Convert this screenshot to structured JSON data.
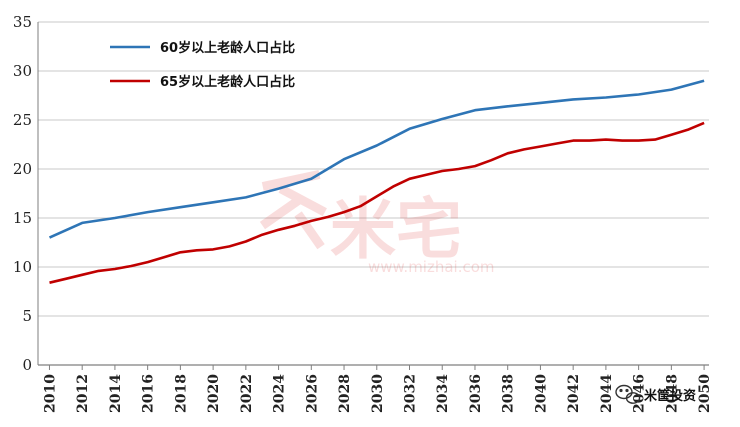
{
  "chart_data": {
    "type": "line",
    "title": "",
    "xlabel": "",
    "ylabel": "",
    "xlim": [
      2009.3,
      2050.3
    ],
    "ylim": [
      0,
      35
    ],
    "yticks": [
      0,
      5,
      10,
      15,
      20,
      25,
      30,
      35
    ],
    "xticks": [
      "2010",
      "2012",
      "2014",
      "2016",
      "2018",
      "2020",
      "2022",
      "2024",
      "2026",
      "2028",
      "2030",
      "2032",
      "2034",
      "2036",
      "2038",
      "2040",
      "2042",
      "2044",
      "2046",
      "2048",
      "2050"
    ],
    "grid": "horizontal",
    "legend_position": "top-left",
    "series": [
      {
        "name": "60岁以上老龄人口占比",
        "color": "#2e75b6",
        "x": [
          2010,
          2012,
          2014,
          2016,
          2018,
          2020,
          2022,
          2024,
          2026,
          2028,
          2030,
          2032,
          2034,
          2036,
          2038,
          2040,
          2042,
          2044,
          2046,
          2048,
          2050
        ],
        "y": [
          13.0,
          14.5,
          15.0,
          15.6,
          16.1,
          16.6,
          17.1,
          18.0,
          19.0,
          21.0,
          22.4,
          24.1,
          25.1,
          26.0,
          26.4,
          26.75,
          27.1,
          27.3,
          27.6,
          28.1,
          29.0
        ]
      },
      {
        "name": "65岁以上老龄人口占比",
        "color": "#c00000",
        "x": [
          2010,
          2011,
          2012,
          2013,
          2014,
          2015,
          2016,
          2017,
          2018,
          2019,
          2020,
          2021,
          2022,
          2023,
          2024,
          2025,
          2026,
          2027,
          2028,
          2029,
          2030,
          2031,
          2032,
          2033,
          2034,
          2035,
          2036,
          2037,
          2038,
          2039,
          2040,
          2041,
          2042,
          2043,
          2044,
          2045,
          2046,
          2047,
          2048,
          2049,
          2050
        ],
        "y": [
          8.4,
          8.8,
          9.2,
          9.6,
          9.8,
          10.1,
          10.5,
          11.0,
          11.5,
          11.7,
          11.8,
          12.1,
          12.6,
          13.3,
          13.8,
          14.2,
          14.7,
          15.1,
          15.6,
          16.2,
          17.2,
          18.2,
          19.0,
          19.4,
          19.8,
          20.0,
          20.3,
          20.9,
          21.6,
          22.0,
          22.3,
          22.6,
          22.9,
          22.9,
          23.0,
          22.9,
          22.9,
          23.0,
          23.5,
          24.0,
          24.7
        ]
      }
    ]
  },
  "watermark": {
    "brand": "米宅",
    "url": "www.mizhai.com"
  },
  "logo_badge": {
    "text": "米筐投资",
    "icon": "wechat-icon"
  }
}
